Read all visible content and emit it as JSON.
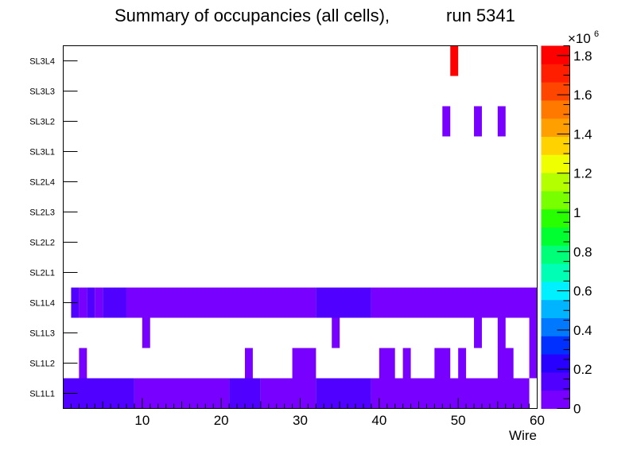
{
  "chart_data": {
    "type": "heatmap",
    "title_main": "Summary of occupancies (all cells),",
    "title_run": "run 5341",
    "xlabel": "Wire",
    "ylabel": "",
    "x_ticks": [
      10,
      20,
      30,
      40,
      50,
      60
    ],
    "xlim": [
      0,
      60
    ],
    "layers": [
      "SL1L1",
      "SL1L2",
      "SL1L3",
      "SL1L4",
      "SL2L1",
      "SL2L2",
      "SL2L3",
      "SL2L4",
      "SL3L1",
      "SL3L2",
      "SL3L3",
      "SL3L4"
    ],
    "z_range": [
      0,
      1850000
    ],
    "z_exponent": "6",
    "colorbar_ticks": [
      {
        "value": 0,
        "label": "0"
      },
      {
        "value": 200000,
        "label": "0.2"
      },
      {
        "value": 400000,
        "label": "0.4"
      },
      {
        "value": 600000,
        "label": "0.6"
      },
      {
        "value": 800000,
        "label": "0.8"
      },
      {
        "value": 1000000,
        "label": "1"
      },
      {
        "value": 1200000,
        "label": "1.2"
      },
      {
        "value": 1400000,
        "label": "1.4"
      },
      {
        "value": 1600000,
        "label": "1.6"
      },
      {
        "value": 1800000,
        "label": "1.8"
      }
    ],
    "palette": [
      "#7800ff",
      "#5000ff",
      "#2800ff",
      "#0030ff",
      "#0078ff",
      "#00b4ff",
      "#00f0ff",
      "#00ffb4",
      "#00ff78",
      "#00ff30",
      "#28ff00",
      "#78ff00",
      "#b4ff00",
      "#f0ff00",
      "#ffd200",
      "#ffa000",
      "#ff7800",
      "#ff4600",
      "#ff1e00",
      "#ff0000"
    ],
    "cells": [
      {
        "layer": 0,
        "x0": 0,
        "x1": 9,
        "value": 100000
      },
      {
        "layer": 0,
        "x0": 9,
        "x1": 21,
        "value": 60000
      },
      {
        "layer": 0,
        "x0": 21,
        "x1": 25,
        "value": 100000
      },
      {
        "layer": 0,
        "x0": 25,
        "x1": 32,
        "value": 60000
      },
      {
        "layer": 0,
        "x0": 32,
        "x1": 39,
        "value": 100000
      },
      {
        "layer": 0,
        "x0": 39,
        "x1": 59,
        "value": 60000
      },
      {
        "layer": 1,
        "x0": 2,
        "x1": 3,
        "value": 60000
      },
      {
        "layer": 1,
        "x0": 23,
        "x1": 24,
        "value": 60000
      },
      {
        "layer": 1,
        "x0": 29,
        "x1": 32,
        "value": 60000
      },
      {
        "layer": 1,
        "x0": 40,
        "x1": 42,
        "value": 60000
      },
      {
        "layer": 1,
        "x0": 43,
        "x1": 44,
        "value": 60000
      },
      {
        "layer": 1,
        "x0": 47,
        "x1": 49,
        "value": 60000
      },
      {
        "layer": 1,
        "x0": 50,
        "x1": 51,
        "value": 60000
      },
      {
        "layer": 1,
        "x0": 55,
        "x1": 57,
        "value": 60000
      },
      {
        "layer": 1,
        "x0": 59,
        "x1": 60,
        "value": 60000
      },
      {
        "layer": 2,
        "x0": 10,
        "x1": 11,
        "value": 60000
      },
      {
        "layer": 2,
        "x0": 34,
        "x1": 35,
        "value": 60000
      },
      {
        "layer": 2,
        "x0": 52,
        "x1": 53,
        "value": 60000
      },
      {
        "layer": 2,
        "x0": 55,
        "x1": 56,
        "value": 60000
      },
      {
        "layer": 2,
        "x0": 59,
        "x1": 60,
        "value": 60000
      },
      {
        "layer": 3,
        "x0": 1,
        "x1": 2,
        "value": 100000
      },
      {
        "layer": 3,
        "x0": 2,
        "x1": 3,
        "value": 60000
      },
      {
        "layer": 3,
        "x0": 3,
        "x1": 4,
        "value": 100000
      },
      {
        "layer": 3,
        "x0": 4,
        "x1": 5,
        "value": 60000
      },
      {
        "layer": 3,
        "x0": 5,
        "x1": 8,
        "value": 100000
      },
      {
        "layer": 3,
        "x0": 8,
        "x1": 32,
        "value": 60000
      },
      {
        "layer": 3,
        "x0": 32,
        "x1": 39,
        "value": 100000
      },
      {
        "layer": 3,
        "x0": 39,
        "x1": 60,
        "value": 60000
      },
      {
        "layer": 9,
        "x0": 48,
        "x1": 49,
        "value": 60000
      },
      {
        "layer": 9,
        "x0": 52,
        "x1": 53,
        "value": 60000
      },
      {
        "layer": 9,
        "x0": 55,
        "x1": 56,
        "value": 60000
      },
      {
        "layer": 11,
        "x0": 49,
        "x1": 50,
        "value": 1850000
      }
    ]
  }
}
